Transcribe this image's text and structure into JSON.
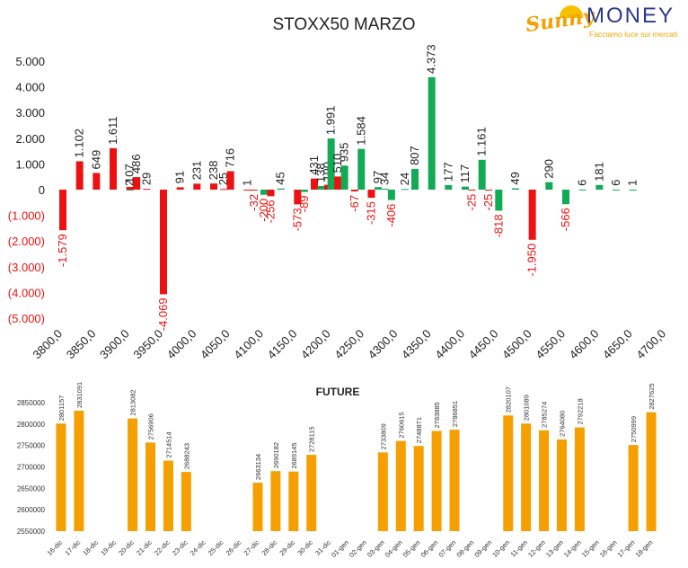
{
  "logo": {
    "brand_left": "Sunny",
    "brand_right": "MONEY",
    "tagline": "Facciamo luce sui mercati"
  },
  "chart_data": [
    {
      "type": "bar",
      "title": "STOXX50 MARZO",
      "xlabel": "",
      "ylabel": "",
      "ylim": [
        -5000,
        5000
      ],
      "yticks": [
        "5.000",
        "4.000",
        "3.000",
        "2.000",
        "1.000",
        "0",
        "(1.000)",
        "(2.000)",
        "(3.000)",
        "(4.000)",
        "(5.000)"
      ],
      "xticks": [
        "3800,0",
        "3850,0",
        "3900,0",
        "3950,0",
        "4000,0",
        "4050,0",
        "4100,0",
        "4150,0",
        "4200,0",
        "4250,0",
        "4300,0",
        "4350,0",
        "4400,0",
        "4450,0",
        "4500,0",
        "4550,0",
        "4600,0",
        "4650,0",
        "4700,0"
      ],
      "grid": false,
      "series_colors": {
        "red": "#ee1111",
        "green": "#11aa55"
      },
      "bars": [
        {
          "x": 3800,
          "color": "red",
          "value": -1579,
          "label": "-1.579"
        },
        {
          "x": 3825,
          "color": "red",
          "value": 1102,
          "label": "1.102"
        },
        {
          "x": 3850,
          "color": "red",
          "value": 649,
          "label": "649"
        },
        {
          "x": 3875,
          "color": "red",
          "value": 1611,
          "label": "1.611"
        },
        {
          "x": 3900,
          "color": "green",
          "value": 2,
          "label": "2"
        },
        {
          "x": 3900,
          "color": "red",
          "value": 107,
          "label": "107"
        },
        {
          "x": 3910,
          "color": "red",
          "value": 486,
          "label": "486"
        },
        {
          "x": 3925,
          "color": "red",
          "value": 29,
          "label": "29"
        },
        {
          "x": 3950,
          "color": "red",
          "value": -4069,
          "label": "-4.069"
        },
        {
          "x": 3975,
          "color": "red",
          "value": 91,
          "label": "91"
        },
        {
          "x": 4000,
          "color": "red",
          "value": 231,
          "label": "231"
        },
        {
          "x": 4025,
          "color": "red",
          "value": 238,
          "label": "238"
        },
        {
          "x": 4040,
          "color": "red",
          "value": 25,
          "label": "25"
        },
        {
          "x": 4050,
          "color": "red",
          "value": 716,
          "label": "716"
        },
        {
          "x": 4075,
          "color": "red",
          "value": 1,
          "label": "1"
        },
        {
          "x": 4085,
          "color": "red",
          "value": -32,
          "label": "-32"
        },
        {
          "x": 4100,
          "color": "green",
          "value": -200,
          "label": "-200"
        },
        {
          "x": 4110,
          "color": "red",
          "value": -256,
          "label": "-256"
        },
        {
          "x": 4125,
          "color": "green",
          "value": 45,
          "label": "45"
        },
        {
          "x": 4150,
          "color": "red",
          "value": -573,
          "label": "-573"
        },
        {
          "x": 4160,
          "color": "green",
          "value": -89,
          "label": "-89"
        },
        {
          "x": 4175,
          "color": "red",
          "value": 431,
          "label": "431"
        },
        {
          "x": 4185,
          "color": "green",
          "value": 138,
          "label": "138"
        },
        {
          "x": 4195,
          "color": "red",
          "value": 190,
          "label": "190"
        },
        {
          "x": 4200,
          "color": "green",
          "value": 1991,
          "label": "1.991"
        },
        {
          "x": 4210,
          "color": "red",
          "value": 510,
          "label": "510"
        },
        {
          "x": 4220,
          "color": "green",
          "value": 935,
          "label": "935"
        },
        {
          "x": 4235,
          "color": "red",
          "value": -67,
          "label": "-67"
        },
        {
          "x": 4245,
          "color": "green",
          "value": 1584,
          "label": "1.584"
        },
        {
          "x": 4260,
          "color": "red",
          "value": -315,
          "label": "-315"
        },
        {
          "x": 4270,
          "color": "green",
          "value": 97,
          "label": "97"
        },
        {
          "x": 4280,
          "color": "green",
          "value": 34,
          "label": "34"
        },
        {
          "x": 4290,
          "color": "green",
          "value": -406,
          "label": "-406"
        },
        {
          "x": 4310,
          "color": "green",
          "value": 24,
          "label": "24"
        },
        {
          "x": 4325,
          "color": "green",
          "value": 807,
          "label": "807"
        },
        {
          "x": 4350,
          "color": "green",
          "value": 4373,
          "label": "4.373"
        },
        {
          "x": 4375,
          "color": "green",
          "value": 177,
          "label": "177"
        },
        {
          "x": 4400,
          "color": "green",
          "value": 117,
          "label": "117"
        },
        {
          "x": 4410,
          "color": "red",
          "value": -25,
          "label": "-25"
        },
        {
          "x": 4425,
          "color": "green",
          "value": 1161,
          "label": "1.161"
        },
        {
          "x": 4435,
          "color": "red",
          "value": -25,
          "label": "-25"
        },
        {
          "x": 4450,
          "color": "green",
          "value": -818,
          "label": "-818"
        },
        {
          "x": 4475,
          "color": "green",
          "value": 49,
          "label": "49"
        },
        {
          "x": 4500,
          "color": "red",
          "value": -1950,
          "label": "-1.950"
        },
        {
          "x": 4525,
          "color": "green",
          "value": 290,
          "label": "290"
        },
        {
          "x": 4550,
          "color": "green",
          "value": -566,
          "label": "-566"
        },
        {
          "x": 4575,
          "color": "green",
          "value": 6,
          "label": "6"
        },
        {
          "x": 4600,
          "color": "green",
          "value": 181,
          "label": "181"
        },
        {
          "x": 4625,
          "color": "green",
          "value": 6,
          "label": "6"
        },
        {
          "x": 4650,
          "color": "green",
          "value": 1,
          "label": "1"
        }
      ]
    },
    {
      "type": "bar",
      "title": "FUTURE",
      "xlabel": "",
      "ylabel": "",
      "ylim": [
        2550000,
        2850000
      ],
      "yticks": [
        "2850000",
        "2800000",
        "2750000",
        "2700000",
        "2650000",
        "2600000",
        "2550000"
      ],
      "color": "#f5a000",
      "categories": [
        "16-dic",
        "17-dic",
        "18-dic",
        "19-dic",
        "20-dic",
        "21-dic",
        "22-dic",
        "23-dic",
        "24-dic",
        "25-dic",
        "26-dic",
        "27-dic",
        "28-dic",
        "29-dic",
        "30-dic",
        "31-dic",
        "01-gen",
        "02-gen",
        "03-gen",
        "04-gen",
        "05-gen",
        "06-gen",
        "07-gen",
        "08-gen",
        "09-gen",
        "10-gen",
        "11-gen",
        "12-gen",
        "13-gen",
        "14-gen",
        "15-gen",
        "16-gen",
        "17-gen",
        "18-gen"
      ],
      "values": [
        2801157,
        2831091,
        null,
        null,
        2813082,
        2756906,
        2714514,
        2688243,
        null,
        null,
        null,
        2663134,
        2690182,
        2689145,
        2728115,
        null,
        null,
        null,
        2733809,
        2760615,
        2748871,
        2783885,
        2786851,
        null,
        null,
        2820107,
        2801089,
        2785274,
        2764080,
        2792218,
        null,
        null,
        2750999,
        2827625
      ]
    }
  ]
}
